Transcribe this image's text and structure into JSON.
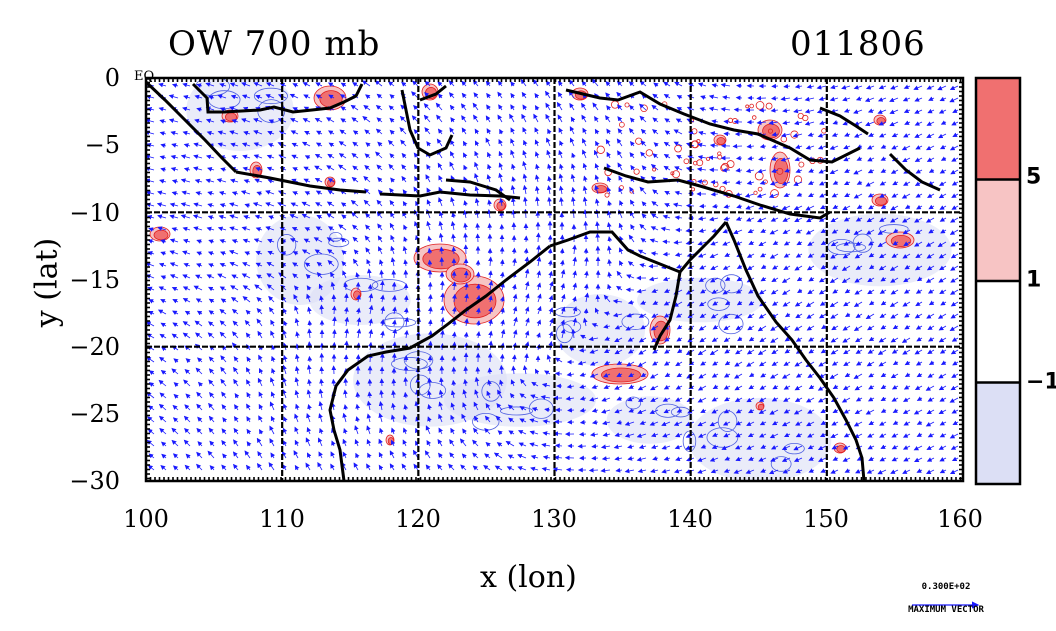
{
  "header": {
    "title_left": "OW 700 mb",
    "title_right": "011806"
  },
  "axes": {
    "xlabel": "x (lon)",
    "ylabel": "y (lat)",
    "x_ticks": [
      "100",
      "110",
      "120",
      "130",
      "140",
      "150",
      "160"
    ],
    "y_ticks": [
      "0",
      "−5",
      "−10",
      "−15",
      "−20",
      "−25",
      "−30"
    ],
    "eq_label": "EQ"
  },
  "colorbar": {
    "ticks": [
      "5",
      "1",
      "−1"
    ],
    "colors": [
      "#f07070",
      "#f7c4c4",
      "#ffffff",
      "#dcdff5"
    ]
  },
  "vector_key": {
    "value": "0.300E+02",
    "caption": "MAXIMUM VECTOR"
  },
  "map": {
    "lon_range": [
      100,
      160
    ],
    "lat_range": [
      -30,
      0
    ],
    "grid_lons": [
      110,
      120,
      130,
      140,
      150
    ],
    "grid_lats": [
      -10,
      -20
    ],
    "positive_colors": [
      "#f07070",
      "#f7c4c4"
    ],
    "negative_color": "#dcdff5",
    "vector_color": "#1a1aff"
  }
}
